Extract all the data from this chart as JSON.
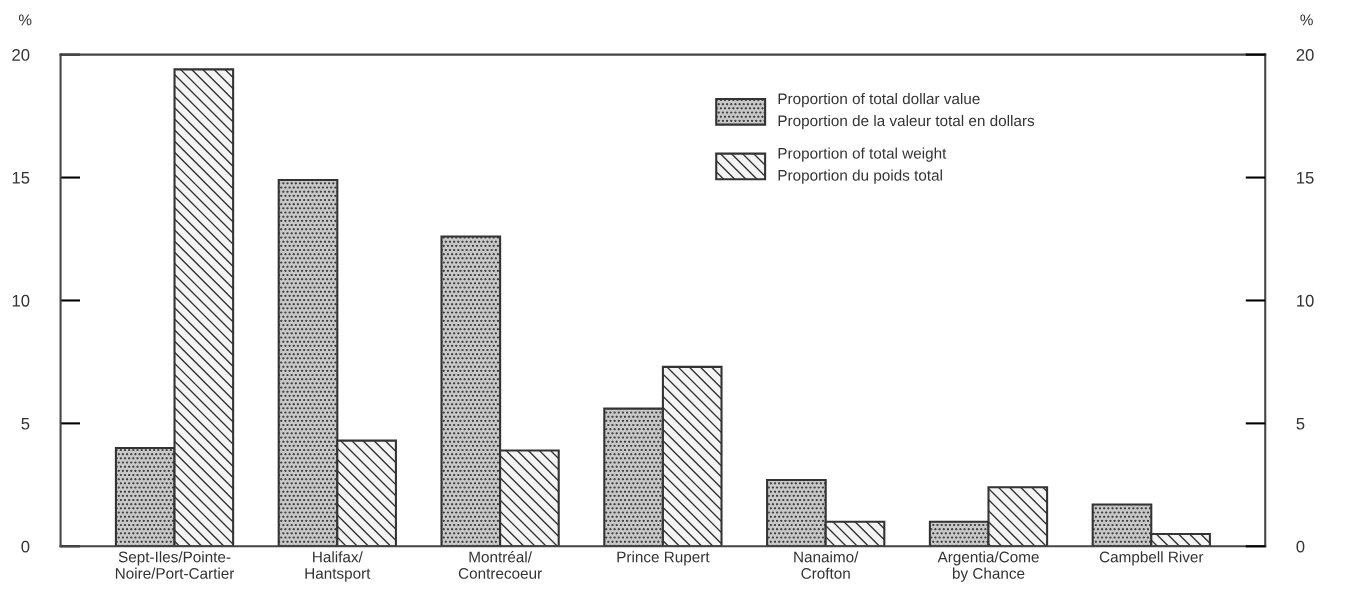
{
  "chart_data": {
    "type": "bar",
    "categories": [
      "Sept-Iles/Pointe-\nNoire/Port-Cartier",
      "Halifax/\nHantsport",
      "Montréal/\nContrecoeur",
      "Prince Rupert",
      "Nanaimo/\nCrofton",
      "Argentia/Come\nby Chance",
      "Campbell River"
    ],
    "series": [
      {
        "name": "Proportion of total dollar value\nProportion de la valeur total en dollars",
        "color": "#c8c8c8",
        "values": [
          4.0,
          14.9,
          12.6,
          5.6,
          2.7,
          1.0,
          1.7
        ]
      },
      {
        "name": "Proportion of total weight\nProportion du poids total",
        "color": "#f4f4f4",
        "values": [
          19.4,
          4.3,
          3.9,
          7.3,
          1.0,
          2.4,
          0.5
        ]
      }
    ],
    "ylabel": "%",
    "y2label": "%",
    "ylim": [
      0,
      20
    ],
    "yticks": [
      0,
      5,
      10,
      15,
      20
    ],
    "y2lim": [
      0,
      20
    ],
    "y2ticks": [
      0,
      5,
      10,
      15,
      20
    ],
    "grid": false,
    "legend": "top right"
  }
}
